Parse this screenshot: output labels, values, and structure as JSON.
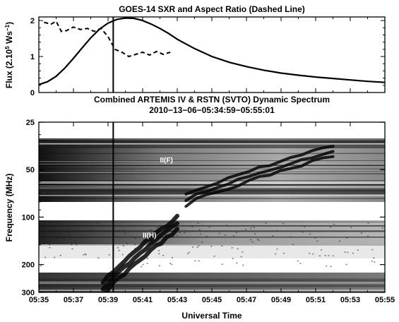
{
  "chart_data": [
    {
      "type": "line",
      "title": "GOES-14 SXR and Aspect Ratio (Dashed Line)",
      "ylabel_prefix": "Flux (2.10",
      "ylabel_exp1": "5",
      "ylabel_mid": " Ws",
      "ylabel_exp2": "−1",
      "ylabel_suffix": ")",
      "xlim": [
        0,
        20
      ],
      "ylim": [
        0,
        2.1
      ],
      "yticks": [
        0,
        1,
        2
      ],
      "x_axis_tick_labels_shown": false,
      "series": [
        {
          "style": "solid",
          "x": [
            0,
            0.5,
            1,
            1.5,
            2,
            2.5,
            3,
            3.5,
            4,
            4.5,
            5,
            5.5,
            6,
            6.5,
            7,
            7.5,
            8,
            9,
            10,
            11,
            12,
            13,
            14,
            15,
            16,
            17,
            18,
            19,
            20
          ],
          "y": [
            0.22,
            0.3,
            0.45,
            0.68,
            0.95,
            1.24,
            1.52,
            1.76,
            1.93,
            2.03,
            2.07,
            2.06,
            2.0,
            1.9,
            1.78,
            1.64,
            1.48,
            1.22,
            1.0,
            0.84,
            0.72,
            0.62,
            0.54,
            0.48,
            0.43,
            0.39,
            0.35,
            0.31,
            0.28
          ]
        },
        {
          "style": "dashed",
          "x": [
            0.3,
            0.7,
            1.0,
            1.3,
            1.6,
            2.0,
            2.4,
            2.8,
            3.2,
            3.6,
            4.0,
            4.4,
            4.8,
            5.2,
            5.6,
            6.0,
            6.4,
            6.8,
            7.2,
            7.6
          ],
          "y": [
            1.95,
            1.9,
            1.98,
            1.7,
            1.72,
            1.82,
            1.75,
            1.78,
            1.7,
            1.78,
            1.55,
            1.2,
            1.12,
            1.0,
            1.06,
            1.12,
            1.04,
            1.14,
            1.06,
            1.12
          ]
        }
      ],
      "marker_line_x": 4.3
    },
    {
      "type": "heatmap",
      "title_line1": "Combined ARTEMIS IV & RSTN (SVTO) Dynamic Spectrum",
      "title_line2": "2010−13−06−05:34:59−05:55:01",
      "xlabel": "Universal Time",
      "ylabel": "Frequency (MHz)",
      "xticks": [
        "05:35",
        "05:37",
        "05:39",
        "05:41",
        "05:43",
        "05:45",
        "05:47",
        "05:49",
        "05:51",
        "05:53",
        "05:55"
      ],
      "yticks": [
        "25",
        "50",
        "100",
        "200",
        "300"
      ],
      "ylim": [
        25,
        300
      ],
      "scale": "log",
      "annotations": [
        {
          "text": "II(F)",
          "time_min": 7.0,
          "freq": 45
        },
        {
          "text": "II(H)",
          "time_min": 6.0,
          "freq": 135
        }
      ],
      "bursts": [
        {
          "label": "II(F)",
          "from": [
            8.5,
            78
          ],
          "to": [
            17.0,
            38
          ]
        },
        {
          "label": "II(H)",
          "from": [
            3.7,
            290
          ],
          "to": [
            8.0,
            110
          ]
        }
      ],
      "marker_line_x": 4.3
    }
  ]
}
